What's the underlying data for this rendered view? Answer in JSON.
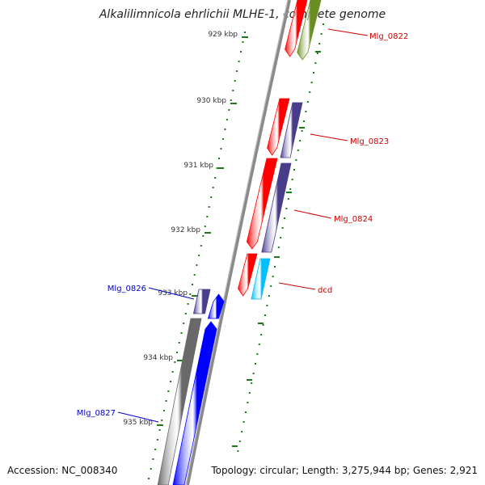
{
  "title": "Alkalilimnicola ehrlichii MLHE-1, complete genome",
  "footer": {
    "accession": "Accession: NC_008340",
    "topology": "Topology: circular; Length: 3,275,944 bp; Genes: 2,921"
  },
  "colors": {
    "backbone": "#8a8a8a",
    "tick": "#1c7a1c",
    "label_red": "#cc0000",
    "label_blue": "#0000cc",
    "gene_red": "#ff0000",
    "gene_olive": "#6b8e23",
    "gene_slate": "#483d8b",
    "gene_cyan": "#00bfff",
    "gene_blue": "#0000ff",
    "gene_gray": "#696969"
  },
  "ticks": [
    {
      "label": "929 kbp"
    },
    {
      "label": "930 kbp"
    },
    {
      "label": "931 kbp"
    },
    {
      "label": "932 kbp"
    },
    {
      "label": "933 kbp"
    },
    {
      "label": "934 kbp"
    },
    {
      "label": "935 kbp"
    }
  ],
  "gene_labels": [
    {
      "name": "Mlg_0822",
      "color": "label_red"
    },
    {
      "name": "Mlg_0823",
      "color": "label_red"
    },
    {
      "name": "Mlg_0824",
      "color": "label_red"
    },
    {
      "name": "dcd",
      "color": "label_red"
    },
    {
      "name": "Mlg_0826",
      "color": "label_blue"
    },
    {
      "name": "Mlg_0827",
      "color": "label_blue"
    }
  ]
}
